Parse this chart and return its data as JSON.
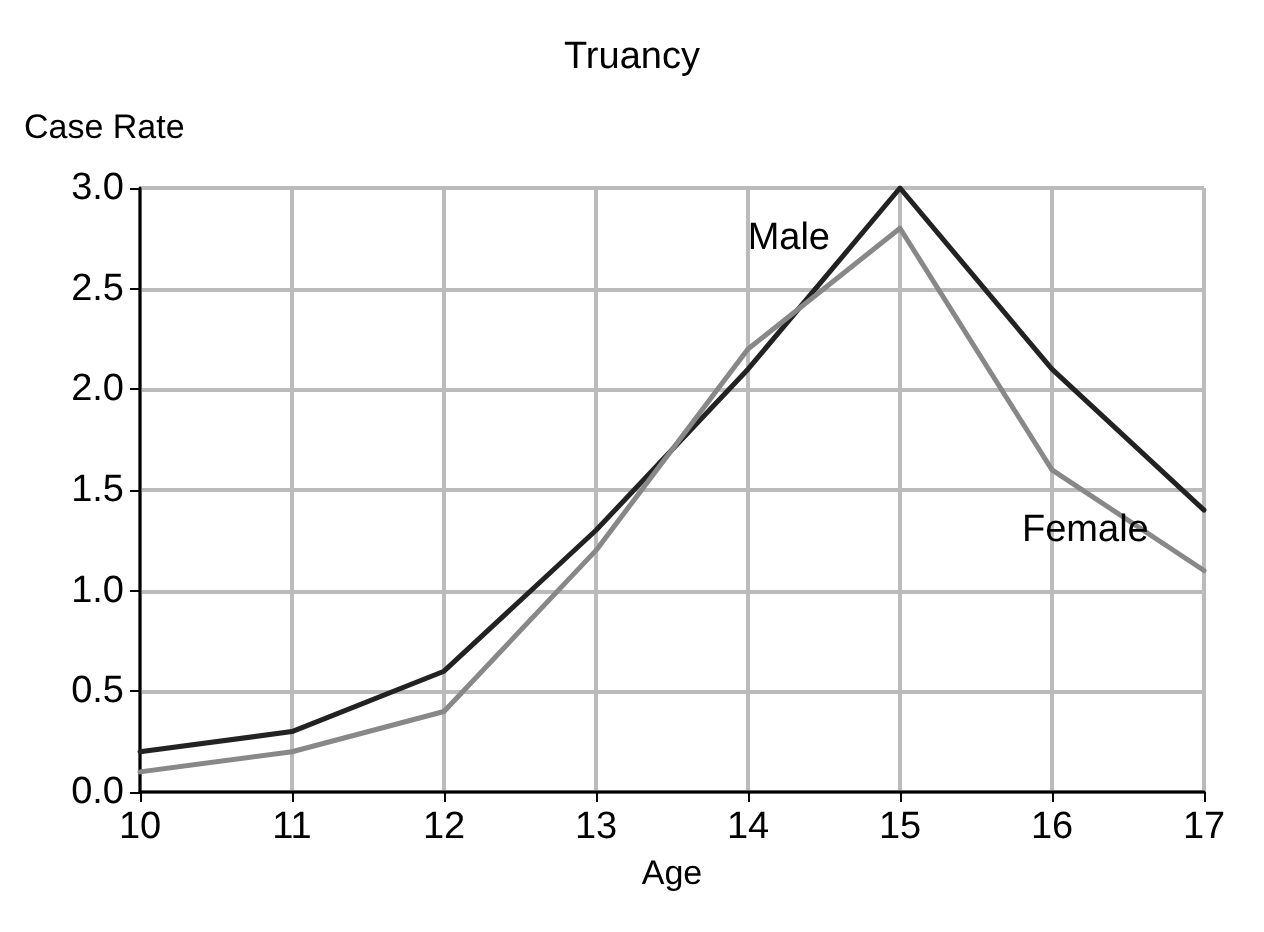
{
  "chart_data": {
    "type": "line",
    "title": "Truancy",
    "xlabel": "Age",
    "ylabel": "Case Rate",
    "x": [
      10,
      11,
      12,
      13,
      14,
      15,
      16,
      17
    ],
    "series": [
      {
        "name": "Male",
        "color": "#222222",
        "values": [
          0.2,
          0.3,
          0.6,
          1.3,
          2.1,
          3.0,
          2.1,
          1.4
        ]
      },
      {
        "name": "Female",
        "color": "#888888",
        "values": [
          0.1,
          0.2,
          0.4,
          1.2,
          2.2,
          2.8,
          1.6,
          1.1
        ]
      }
    ],
    "xlim": [
      10,
      17
    ],
    "xticks": [
      10,
      11,
      12,
      13,
      14,
      15,
      16,
      17
    ],
    "ylim": [
      0,
      3
    ],
    "yticks": [
      {
        "value": 0,
        "label": "0.0"
      },
      {
        "value": 0.5,
        "label": "0.5"
      },
      {
        "value": 1,
        "label": "1.0"
      },
      {
        "value": 1.5,
        "label": "1.5"
      },
      {
        "value": 2,
        "label": "2.0"
      },
      {
        "value": 2.5,
        "label": "2.5"
      },
      {
        "value": 3,
        "label": "3.0"
      }
    ],
    "grid": true,
    "marker": "none",
    "line_style": "solid",
    "legend": false
  }
}
